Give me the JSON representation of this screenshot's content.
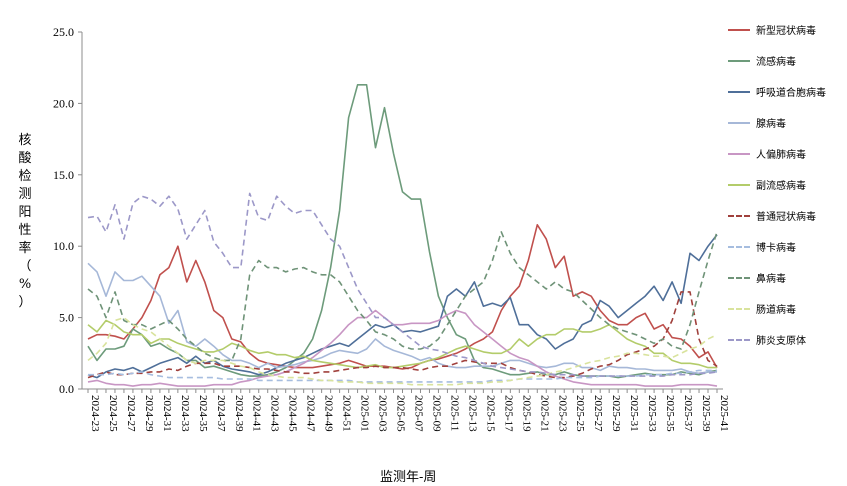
{
  "chart_data": {
    "type": "line",
    "title": "",
    "xlabel": "监测年-周",
    "ylabel": "核酸检测阳性率（%）",
    "ylim": [
      0,
      25
    ],
    "yticks": [
      "0.0",
      "5.0",
      "10.0",
      "15.0",
      "20.0",
      "25.0"
    ],
    "x_tick_labels": [
      "2024-23",
      "2024-25",
      "2024-27",
      "2024-29",
      "2024-31",
      "2024-33",
      "2024-35",
      "2024-37",
      "2024-39",
      "2024-41",
      "2024-43",
      "2024-45",
      "2024-47",
      "2024-49",
      "2024-51",
      "2025-01",
      "2025-03",
      "2025-05",
      "2025-07",
      "2025-09",
      "2025-11",
      "2025-13",
      "2025-15",
      "2025-17",
      "2025-19",
      "2025-21",
      "2025-23",
      "2025-25",
      "2025-27",
      "2025-29",
      "2025-31",
      "2025-33",
      "2025-35",
      "2025-37",
      "2025-39",
      "2025-41"
    ],
    "x": [
      "2024-23",
      "2024-24",
      "2024-25",
      "2024-26",
      "2024-27",
      "2024-28",
      "2024-29",
      "2024-30",
      "2024-31",
      "2024-32",
      "2024-33",
      "2024-34",
      "2024-35",
      "2024-36",
      "2024-37",
      "2024-38",
      "2024-39",
      "2024-40",
      "2024-41",
      "2024-42",
      "2024-43",
      "2024-44",
      "2024-45",
      "2024-46",
      "2024-47",
      "2024-48",
      "2024-49",
      "2024-50",
      "2024-51",
      "2024-52",
      "2025-01",
      "2025-02",
      "2025-03",
      "2025-04",
      "2025-05",
      "2025-06",
      "2025-07",
      "2025-08",
      "2025-09",
      "2025-10",
      "2025-11",
      "2025-12",
      "2025-13",
      "2025-14",
      "2025-15",
      "2025-16",
      "2025-17",
      "2025-18",
      "2025-19",
      "2025-20",
      "2025-21",
      "2025-22",
      "2025-23",
      "2025-24",
      "2025-25",
      "2025-26",
      "2025-27",
      "2025-28",
      "2025-29",
      "2025-30",
      "2025-31",
      "2025-32",
      "2025-33",
      "2025-34",
      "2025-35",
      "2025-36",
      "2025-37",
      "2025-38",
      "2025-39",
      "2025-40",
      "2025-41"
    ],
    "legend_position": "right",
    "grid": false,
    "series": [
      {
        "name": "新型冠状病毒",
        "color": "#c0504d",
        "dash": false,
        "values": [
          3.5,
          3.8,
          3.8,
          3.7,
          3.5,
          4.2,
          5.0,
          6.2,
          8.0,
          8.5,
          10.0,
          7.5,
          9.0,
          7.5,
          5.5,
          5.0,
          3.5,
          3.3,
          2.5,
          2.0,
          1.8,
          1.7,
          1.6,
          1.5,
          1.5,
          1.5,
          1.6,
          1.7,
          1.8,
          2.0,
          1.8,
          1.6,
          1.6,
          1.6,
          1.5,
          1.4,
          1.5,
          1.8,
          2.0,
          2.1,
          2.3,
          2.5,
          2.8,
          3.2,
          3.5,
          4.0,
          5.5,
          6.5,
          7.2,
          9.0,
          11.5,
          10.5,
          8.5,
          9.3,
          6.5,
          6.8,
          6.5,
          5.5,
          4.8,
          4.5,
          4.5,
          5.0,
          5.3,
          4.2,
          4.5,
          3.6,
          3.5,
          3.0,
          2.2,
          2.6,
          1.5
        ]
      },
      {
        "name": "流感病毒",
        "color": "#6d9b7b",
        "dash": false,
        "values": [
          3.0,
          2.0,
          2.8,
          2.8,
          3.0,
          4.2,
          3.8,
          3.0,
          3.2,
          2.8,
          2.5,
          2.0,
          2.0,
          1.5,
          1.6,
          1.4,
          1.2,
          1.0,
          0.9,
          0.9,
          1.0,
          1.2,
          1.5,
          2.0,
          2.5,
          3.5,
          5.5,
          8.5,
          12.5,
          19.0,
          21.3,
          21.3,
          16.9,
          19.7,
          16.5,
          13.8,
          13.3,
          13.3,
          9.6,
          6.5,
          5.0,
          3.8,
          3.5,
          2.0,
          1.5,
          1.4,
          1.2,
          1.0,
          1.0,
          1.1,
          1.2,
          1.0,
          1.0,
          1.2,
          1.0,
          0.9,
          0.9,
          0.9,
          0.9,
          0.8,
          0.9,
          1.0,
          1.1,
          1.0,
          1.0,
          1.0,
          1.2,
          1.1,
          1.0,
          1.2,
          1.3
        ]
      },
      {
        "name": "呼吸道合胞病毒",
        "color": "#4f6f99",
        "dash": false,
        "values": [
          1.0,
          0.8,
          1.2,
          1.4,
          1.3,
          1.5,
          1.2,
          1.5,
          1.8,
          2.0,
          2.2,
          1.8,
          2.3,
          1.8,
          2.0,
          1.6,
          1.4,
          1.3,
          1.2,
          1.0,
          1.2,
          1.5,
          1.8,
          2.0,
          2.2,
          2.5,
          2.8,
          3.0,
          3.2,
          3.0,
          3.5,
          4.0,
          4.5,
          4.3,
          4.5,
          4.0,
          4.1,
          4.0,
          4.2,
          4.4,
          6.5,
          7.0,
          6.5,
          7.5,
          5.8,
          6.0,
          5.8,
          6.4,
          4.5,
          4.5,
          3.8,
          3.5,
          2.8,
          3.2,
          3.5,
          4.5,
          4.8,
          6.2,
          5.8,
          5.0,
          5.5,
          6.0,
          6.5,
          7.2,
          6.2,
          7.5,
          6.0,
          9.5,
          9.0,
          10.0,
          10.8
        ]
      },
      {
        "name": "腺病毒",
        "color": "#a6b8d8",
        "dash": false,
        "values": [
          8.8,
          8.2,
          6.5,
          8.2,
          7.6,
          7.6,
          7.9,
          7.2,
          6.5,
          4.6,
          5.5,
          3.3,
          3.0,
          3.5,
          3.0,
          2.4,
          2.0,
          2.0,
          1.8,
          1.5,
          1.8,
          1.5,
          1.6,
          1.7,
          1.9,
          2.0,
          2.2,
          2.5,
          2.7,
          2.6,
          2.5,
          2.8,
          3.5,
          3.0,
          2.7,
          2.5,
          2.3,
          2.0,
          2.2,
          1.8,
          1.6,
          1.5,
          1.5,
          1.6,
          1.6,
          1.6,
          1.8,
          2.0,
          2.0,
          1.8,
          1.6,
          1.5,
          1.6,
          1.8,
          1.8,
          1.5,
          1.5,
          1.3,
          1.6,
          1.5,
          1.5,
          1.4,
          1.4,
          1.3,
          1.3,
          1.3,
          1.4,
          1.2,
          1.1,
          1.2,
          1.2
        ]
      },
      {
        "name": "人偏肺病毒",
        "color": "#c896c4",
        "dash": false,
        "values": [
          0.5,
          0.6,
          0.4,
          0.3,
          0.3,
          0.2,
          0.3,
          0.3,
          0.4,
          0.3,
          0.2,
          0.2,
          0.2,
          0.2,
          0.3,
          0.3,
          0.3,
          0.5,
          0.6,
          0.8,
          0.9,
          1.0,
          1.2,
          1.5,
          1.8,
          2.2,
          2.7,
          3.2,
          3.8,
          4.5,
          5.0,
          5.0,
          5.5,
          5.0,
          4.5,
          4.5,
          4.6,
          4.6,
          4.6,
          4.8,
          5.2,
          5.5,
          5.3,
          4.5,
          4.0,
          3.5,
          3.0,
          2.5,
          2.2,
          2.0,
          1.6,
          1.2,
          0.9,
          0.7,
          0.5,
          0.4,
          0.3,
          0.3,
          0.3,
          0.3,
          0.3,
          0.3,
          0.2,
          0.2,
          0.2,
          0.2,
          0.3,
          0.3,
          0.3,
          0.3,
          0.2
        ]
      },
      {
        "name": "副流感病毒",
        "color": "#b3cc6a",
        "dash": false,
        "values": [
          4.5,
          4.0,
          4.8,
          4.5,
          4.0,
          3.8,
          3.8,
          3.2,
          3.5,
          3.5,
          3.2,
          3.0,
          2.8,
          2.6,
          2.6,
          2.8,
          3.2,
          3.0,
          2.7,
          2.5,
          2.6,
          2.4,
          2.4,
          2.2,
          2.3,
          2.0,
          1.9,
          1.8,
          1.7,
          1.6,
          1.5,
          1.6,
          1.7,
          1.5,
          1.5,
          1.6,
          1.7,
          1.8,
          2.0,
          2.2,
          2.5,
          2.8,
          3.0,
          2.8,
          2.6,
          2.5,
          2.5,
          2.8,
          3.5,
          3.0,
          3.5,
          3.8,
          3.8,
          4.2,
          4.2,
          4.0,
          4.0,
          4.2,
          4.5,
          4.0,
          3.5,
          3.2,
          3.0,
          2.5,
          2.5,
          2.0,
          1.8,
          1.8,
          1.7,
          1.5,
          1.5
        ]
      },
      {
        "name": "普通冠状病毒",
        "color": "#a0403c",
        "dash": true,
        "values": [
          0.8,
          1.0,
          1.2,
          1.0,
          1.0,
          1.1,
          1.1,
          1.2,
          1.2,
          1.4,
          1.3,
          1.6,
          1.8,
          1.8,
          1.8,
          1.6,
          1.6,
          1.6,
          1.5,
          1.4,
          1.4,
          1.3,
          1.2,
          1.2,
          1.1,
          1.1,
          1.2,
          1.2,
          1.3,
          1.4,
          1.5,
          1.5,
          1.6,
          1.5,
          1.5,
          1.5,
          1.4,
          1.3,
          1.5,
          1.6,
          1.6,
          1.8,
          2.0,
          1.9,
          1.8,
          1.8,
          1.8,
          1.5,
          1.3,
          1.2,
          1.0,
          0.9,
          0.8,
          0.8,
          0.9,
          1.1,
          1.4,
          1.6,
          1.7,
          2.0,
          2.4,
          2.6,
          2.8,
          3.0,
          3.5,
          4.8,
          6.8,
          6.8,
          3.5,
          2.0,
          1.6
        ]
      },
      {
        "name": "博卡病毒",
        "color": "#a6bddf",
        "dash": true,
        "values": [
          1.0,
          1.0,
          1.0,
          1.1,
          1.0,
          1.1,
          1.2,
          1.0,
          0.9,
          0.8,
          0.8,
          0.8,
          0.8,
          0.8,
          0.8,
          0.7,
          0.7,
          0.7,
          0.7,
          0.6,
          0.6,
          0.6,
          0.6,
          0.6,
          0.6,
          0.6,
          0.6,
          0.6,
          0.6,
          0.6,
          0.5,
          0.5,
          0.5,
          0.5,
          0.5,
          0.5,
          0.5,
          0.5,
          0.5,
          0.5,
          0.5,
          0.5,
          0.5,
          0.5,
          0.5,
          0.6,
          0.6,
          0.6,
          0.7,
          0.7,
          0.7,
          0.7,
          0.7,
          0.8,
          0.8,
          0.8,
          0.8,
          0.9,
          0.9,
          0.9,
          0.9,
          0.9,
          1.0,
          1.0,
          1.0,
          1.1,
          1.1,
          1.2,
          1.3,
          1.3,
          1.3
        ]
      },
      {
        "name": "鼻病毒",
        "color": "#6f9378",
        "dash": true,
        "values": [
          7.0,
          6.5,
          5.0,
          6.8,
          4.8,
          4.5,
          4.5,
          4.2,
          4.5,
          4.8,
          4.2,
          3.5,
          3.0,
          2.5,
          2.2,
          2.0,
          2.0,
          3.5,
          8.0,
          9.0,
          8.5,
          8.5,
          8.2,
          8.4,
          8.5,
          8.2,
          8.0,
          8.0,
          7.5,
          6.5,
          5.5,
          4.8,
          4.0,
          3.8,
          3.5,
          3.0,
          2.8,
          2.8,
          3.0,
          3.5,
          4.5,
          5.5,
          6.5,
          7.0,
          7.5,
          9.0,
          11.0,
          9.5,
          8.5,
          8.0,
          7.5,
          7.0,
          7.5,
          7.0,
          6.8,
          6.2,
          5.6,
          5.0,
          4.5,
          4.2,
          4.0,
          3.8,
          3.5,
          3.2,
          3.5,
          3.0,
          2.8,
          4.5,
          6.8,
          9.0,
          11.0
        ]
      },
      {
        "name": "肠道病毒",
        "color": "#d9e39d",
        "dash": true,
        "values": [
          2.0,
          2.5,
          3.2,
          4.8,
          5.0,
          4.5,
          4.2,
          4.0,
          3.5,
          3.0,
          2.5,
          2.0,
          1.8,
          2.0,
          2.0,
          2.0,
          1.8,
          1.6,
          1.5,
          1.2,
          1.0,
          0.9,
          0.8,
          0.8,
          0.8,
          0.7,
          0.6,
          0.6,
          0.5,
          0.5,
          0.5,
          0.4,
          0.4,
          0.4,
          0.4,
          0.4,
          0.3,
          0.3,
          0.3,
          0.3,
          0.3,
          0.3,
          0.4,
          0.4,
          0.4,
          0.5,
          0.5,
          0.6,
          0.7,
          0.8,
          0.9,
          1.0,
          1.2,
          1.3,
          1.5,
          1.7,
          1.9,
          2.0,
          2.2,
          2.3,
          2.5,
          2.5,
          2.4,
          2.3,
          2.3,
          2.2,
          2.5,
          2.8,
          3.0,
          3.5,
          3.8
        ]
      },
      {
        "name": "肺炎支原体",
        "color": "#9c98c8",
        "dash": true,
        "values": [
          12.0,
          12.1,
          11.0,
          12.9,
          10.5,
          13.0,
          13.5,
          13.3,
          12.8,
          13.5,
          12.6,
          10.5,
          11.5,
          12.5,
          10.3,
          9.5,
          8.5,
          8.5,
          13.7,
          12.0,
          11.8,
          13.5,
          12.8,
          12.3,
          12.5,
          12.5,
          11.5,
          10.5,
          10.0,
          8.5,
          7.0,
          6.0,
          5.0,
          5.0,
          4.5,
          4.0,
          3.5,
          3.0,
          2.8,
          2.7,
          2.5,
          2.3,
          2.2,
          2.0,
          1.8,
          1.6,
          1.5,
          1.4,
          1.3,
          1.2,
          1.2,
          1.1,
          1.0,
          1.0,
          1.0,
          0.9,
          0.9,
          0.9,
          0.9,
          0.9,
          0.9,
          0.9,
          0.9,
          0.9,
          0.9,
          1.0,
          1.0,
          1.0,
          1.1,
          1.1,
          1.2
        ]
      }
    ]
  }
}
